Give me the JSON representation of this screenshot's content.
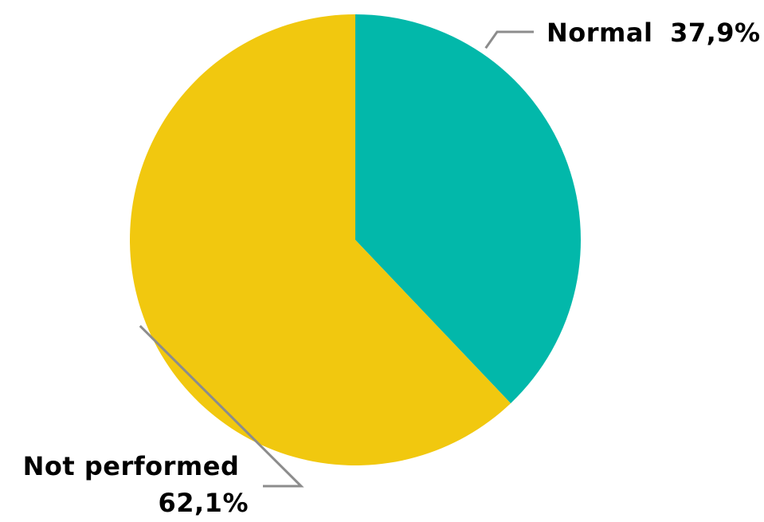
{
  "chart_data": {
    "type": "pie",
    "title": "",
    "slices": [
      {
        "label": "Normal",
        "value": 37.9,
        "display": "37,9%",
        "color": "#02b8aa"
      },
      {
        "label": "Not performed",
        "value": 62.1,
        "display": "62,1%",
        "color": "#f1c80f"
      }
    ],
    "start_angle_deg": 0,
    "direction": "clockwise",
    "legend": "none",
    "labels": "outside with leader lines"
  }
}
